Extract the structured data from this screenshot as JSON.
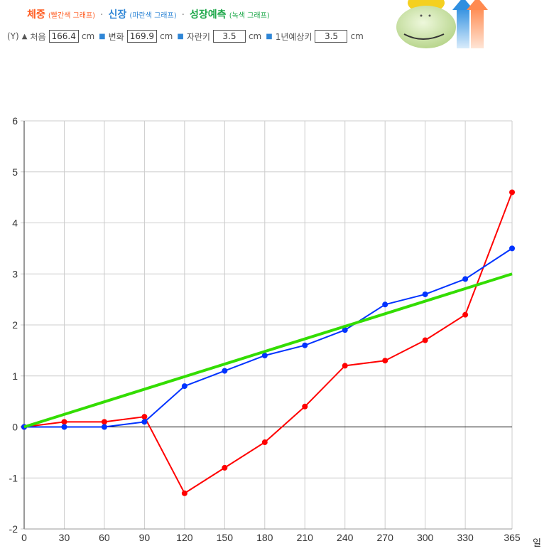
{
  "legend": {
    "weight": "체중",
    "weight_note": "(빨간색 그래프)",
    "height": "신장",
    "height_note": "(파란색 그래프)",
    "growth": "성장예측",
    "growth_note": "(녹색 그래프)",
    "sep": "·"
  },
  "info": {
    "y_label": "(Y)",
    "start_label": "처음",
    "start_value": "166.4",
    "unit": "cm",
    "change_label": "변화",
    "change_value": "169.9",
    "growth_label": "자란키",
    "growth_value": "3.5",
    "annual_label": "1년예상키",
    "annual_value": "3.5"
  },
  "colors": {
    "weight": "#ff0000",
    "height": "#0033ff",
    "growth": "#33dd00",
    "grid": "#cccccc",
    "zero_line": "#000000"
  },
  "chart_data": {
    "type": "line",
    "x": [
      0,
      30,
      60,
      90,
      120,
      150,
      180,
      210,
      240,
      270,
      300,
      330,
      365
    ],
    "x_tick_labels": [
      "0",
      "30",
      "60",
      "90",
      "120",
      "150",
      "180",
      "210",
      "240",
      "270",
      "300",
      "330",
      "365"
    ],
    "y_tick_labels": [
      "6",
      "5",
      "4",
      "3",
      "2",
      "1",
      "0",
      "-1",
      "-2"
    ],
    "xlabel": "일",
    "ylim": [
      -2,
      6
    ],
    "xlim": [
      0,
      365
    ],
    "grid": true,
    "series": [
      {
        "color": "#ff0000",
        "marker": true,
        "values": [
          0,
          0.1,
          0.1,
          0.2,
          -1.3,
          -0.8,
          -0.3,
          0.4,
          1.2,
          1.3,
          1.7,
          2.2,
          4.6
        ]
      },
      {
        "color": "#0033ff",
        "marker": true,
        "values": [
          0,
          0,
          0,
          0.1,
          0.8,
          1.1,
          1.4,
          1.6,
          1.9,
          2.4,
          2.6,
          2.9,
          3.5
        ]
      },
      {
        "color": "#33dd00",
        "marker": false,
        "values": [
          0,
          3.0
        ],
        "x": [
          0,
          365
        ]
      }
    ]
  }
}
